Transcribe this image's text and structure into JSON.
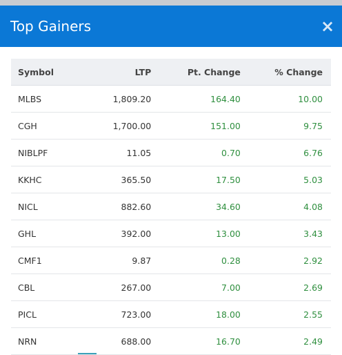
{
  "header": {
    "title": "Top Gainers",
    "close": "×"
  },
  "table": {
    "columns": [
      "Symbol",
      "LTP",
      "Pt. Change",
      "% Change"
    ],
    "rows": [
      [
        "MLBS",
        "1,809.20",
        "164.40",
        "10.00"
      ],
      [
        "CGH",
        "1,700.00",
        "151.00",
        "9.75"
      ],
      [
        "NIBLPF",
        "11.05",
        "0.70",
        "6.76"
      ],
      [
        "KKHC",
        "365.50",
        "17.50",
        "5.03"
      ],
      [
        "NICL",
        "882.60",
        "34.60",
        "4.08"
      ],
      [
        "GHL",
        "392.00",
        "13.00",
        "3.43"
      ],
      [
        "CMF1",
        "9.87",
        "0.28",
        "2.92"
      ],
      [
        "CBL",
        "267.00",
        "7.00",
        "2.69"
      ],
      [
        "PICL",
        "723.00",
        "18.00",
        "2.55"
      ],
      [
        "NRN",
        "688.00",
        "16.70",
        "2.49"
      ]
    ]
  }
}
